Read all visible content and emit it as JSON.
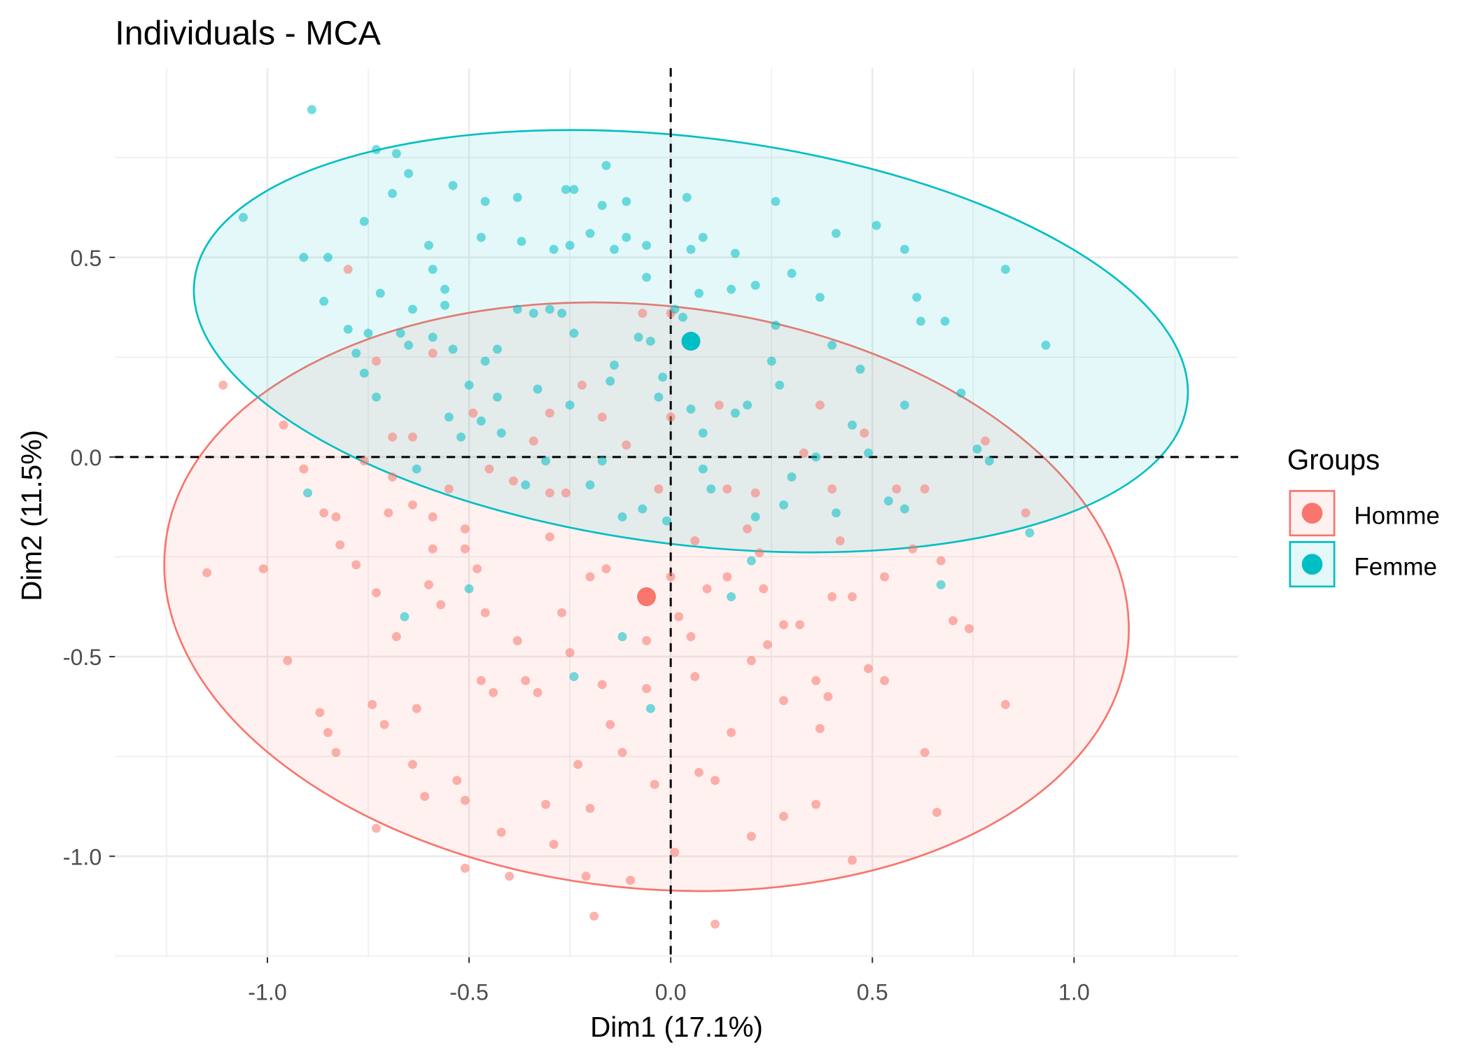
{
  "chart_data": {
    "type": "scatter",
    "title": "Individuals - MCA",
    "xlabel": "Dim1 (17.1%)",
    "ylabel": "Dim2 (11.5%)",
    "xlim": [
      -1.378,
      1.407
    ],
    "ylim": [
      -1.253,
      0.974
    ],
    "x_ticks": [
      -1.0,
      -0.5,
      0.0,
      0.5,
      1.0
    ],
    "x_tick_labels": [
      "-1.0",
      "-0.5",
      "0.0",
      "0.5",
      "1.0"
    ],
    "y_ticks": [
      -1.0,
      -0.5,
      0.0,
      0.5
    ],
    "y_tick_labels": [
      "-1.0",
      "-0.5",
      "0.0",
      "0.5"
    ],
    "grid": true,
    "reference_lines": {
      "x": 0,
      "y": 0,
      "style": "dashed"
    },
    "legend": {
      "title": "Groups",
      "position": "right"
    },
    "series": [
      {
        "name": "Homme",
        "color": "#F8766D",
        "centroid": [
          -0.06,
          -0.35
        ],
        "ellipse": {
          "center": [
            -0.06,
            -0.35
          ],
          "semi_major": 1.2,
          "semi_minor": 0.73,
          "angle_deg": -6
        },
        "points": [
          [
            -1.11,
            0.18
          ],
          [
            -1.15,
            -0.29
          ],
          [
            -1.01,
            -0.28
          ],
          [
            -0.95,
            -0.51
          ],
          [
            -0.91,
            -0.03
          ],
          [
            -0.87,
            -0.64
          ],
          [
            -0.85,
            -0.69
          ],
          [
            -0.83,
            -0.74
          ],
          [
            -0.82,
            -0.22
          ],
          [
            -0.78,
            -0.27
          ],
          [
            -0.73,
            -0.34
          ],
          [
            -0.7,
            -0.14
          ],
          [
            -0.68,
            -0.45
          ],
          [
            -0.64,
            -0.12
          ],
          [
            -0.59,
            -0.15
          ],
          [
            -0.59,
            -0.23
          ],
          [
            -0.6,
            -0.32
          ],
          [
            -0.57,
            -0.37
          ],
          [
            -0.51,
            -0.18
          ],
          [
            -0.51,
            -0.23
          ],
          [
            -0.48,
            -0.28
          ],
          [
            -0.46,
            -0.39
          ],
          [
            -0.47,
            -0.56
          ],
          [
            -0.44,
            -0.59
          ],
          [
            -0.38,
            -0.46
          ],
          [
            -0.36,
            -0.56
          ],
          [
            -0.33,
            -0.59
          ],
          [
            -0.3,
            -0.2
          ],
          [
            -0.27,
            -0.39
          ],
          [
            -0.25,
            -0.49
          ],
          [
            -0.2,
            -0.3
          ],
          [
            -0.17,
            -0.57
          ],
          [
            -0.15,
            -0.67
          ],
          [
            -0.23,
            -0.77
          ],
          [
            -0.2,
            -0.88
          ],
          [
            -0.42,
            -0.94
          ],
          [
            -0.51,
            -0.86
          ],
          [
            -0.64,
            -0.77
          ],
          [
            -0.63,
            -0.63
          ],
          [
            -0.29,
            -0.97
          ],
          [
            -0.21,
            -1.05
          ],
          [
            -0.19,
            -1.15
          ],
          [
            -0.1,
            -1.06
          ],
          [
            0.01,
            -0.99
          ],
          [
            0.11,
            -1.17
          ],
          [
            0.2,
            -0.95
          ],
          [
            0.28,
            -0.9
          ],
          [
            0.45,
            -1.01
          ],
          [
            0.63,
            -0.74
          ],
          [
            0.83,
            -0.62
          ],
          [
            0.7,
            -0.41
          ],
          [
            0.67,
            -0.26
          ],
          [
            0.53,
            -0.3
          ],
          [
            0.49,
            -0.53
          ],
          [
            0.53,
            -0.56
          ],
          [
            0.45,
            -0.35
          ],
          [
            0.4,
            -0.35
          ],
          [
            0.36,
            -0.56
          ],
          [
            0.32,
            -0.42
          ],
          [
            0.28,
            -0.42
          ],
          [
            0.24,
            -0.47
          ],
          [
            0.23,
            -0.33
          ],
          [
            0.2,
            -0.51
          ],
          [
            0.15,
            -0.69
          ],
          [
            0.11,
            -0.81
          ],
          [
            0.07,
            -0.79
          ],
          [
            0.09,
            -0.33
          ],
          [
            0.14,
            -0.3
          ],
          [
            0.06,
            -0.55
          ],
          [
            0.05,
            -0.45
          ],
          [
            0.02,
            -0.4
          ],
          [
            0.0,
            -0.3
          ],
          [
            -0.06,
            -0.58
          ],
          [
            -0.06,
            -0.46
          ],
          [
            -0.16,
            -0.28
          ],
          [
            -0.04,
            -0.82
          ],
          [
            -0.12,
            -0.74
          ],
          [
            -0.31,
            -0.87
          ],
          [
            -0.51,
            -1.03
          ],
          [
            -0.4,
            -1.05
          ],
          [
            -0.73,
            -0.93
          ],
          [
            -0.74,
            -0.62
          ],
          [
            -0.71,
            -0.67
          ],
          [
            -0.61,
            -0.85
          ],
          [
            -0.53,
            -0.81
          ],
          [
            0.36,
            -0.87
          ],
          [
            0.28,
            -0.61
          ],
          [
            0.37,
            -0.68
          ],
          [
            0.39,
            -0.6
          ],
          [
            0.66,
            -0.89
          ],
          [
            0.74,
            -0.43
          ],
          [
            0.6,
            -0.23
          ],
          [
            0.63,
            -0.08
          ],
          [
            0.78,
            0.04
          ],
          [
            0.88,
            -0.14
          ],
          [
            0.4,
            -0.08
          ],
          [
            0.42,
            -0.21
          ],
          [
            0.21,
            -0.09
          ],
          [
            0.19,
            -0.18
          ],
          [
            0.22,
            -0.24
          ],
          [
            0.14,
            -0.08
          ],
          [
            0.06,
            -0.21
          ],
          [
            -0.03,
            -0.08
          ],
          [
            0.0,
            0.1
          ],
          [
            -0.11,
            0.03
          ],
          [
            -0.17,
            0.1
          ],
          [
            -0.22,
            0.18
          ],
          [
            -0.3,
            0.11
          ],
          [
            -0.34,
            0.04
          ],
          [
            -0.26,
            -0.09
          ],
          [
            -0.3,
            -0.09
          ],
          [
            -0.39,
            -0.06
          ],
          [
            -0.45,
            -0.03
          ],
          [
            -0.49,
            0.11
          ],
          [
            -0.55,
            -0.08
          ],
          [
            -0.59,
            0.26
          ],
          [
            -0.64,
            0.05
          ],
          [
            -0.69,
            -0.05
          ],
          [
            -0.76,
            -0.01
          ],
          [
            -0.73,
            0.24
          ],
          [
            -0.8,
            0.47
          ],
          [
            -0.96,
            0.08
          ],
          [
            -0.69,
            0.05
          ],
          [
            -0.83,
            -0.15
          ],
          [
            -0.86,
            -0.14
          ],
          [
            -0.07,
            0.36
          ],
          [
            0.0,
            0.36
          ],
          [
            0.12,
            0.13
          ],
          [
            0.37,
            0.13
          ],
          [
            0.33,
            0.01
          ],
          [
            0.48,
            0.06
          ],
          [
            0.56,
            -0.08
          ]
        ]
      },
      {
        "name": "Femme",
        "color": "#00BFC4",
        "centroid": [
          0.05,
          0.29
        ],
        "ellipse": {
          "center": [
            0.05,
            0.29
          ],
          "semi_major": 1.24,
          "semi_minor": 0.51,
          "angle_deg": -7
        },
        "points": [
          [
            -0.89,
            0.87
          ],
          [
            -1.06,
            0.6
          ],
          [
            -0.91,
            0.5
          ],
          [
            -0.86,
            0.39
          ],
          [
            -0.69,
            0.66
          ],
          [
            -0.65,
            0.71
          ],
          [
            -0.54,
            0.68
          ],
          [
            -0.46,
            0.64
          ],
          [
            -0.38,
            0.65
          ],
          [
            -0.26,
            0.67
          ],
          [
            -0.24,
            0.67
          ],
          [
            -0.17,
            0.63
          ],
          [
            -0.16,
            0.73
          ],
          [
            -0.11,
            0.64
          ],
          [
            -0.47,
            0.55
          ],
          [
            -0.37,
            0.54
          ],
          [
            -0.29,
            0.52
          ],
          [
            -0.25,
            0.53
          ],
          [
            -0.2,
            0.56
          ],
          [
            -0.14,
            0.52
          ],
          [
            -0.11,
            0.55
          ],
          [
            -0.06,
            0.53
          ],
          [
            -0.6,
            0.53
          ],
          [
            -0.59,
            0.47
          ],
          [
            -0.56,
            0.42
          ],
          [
            -0.56,
            0.38
          ],
          [
            -0.72,
            0.41
          ],
          [
            -0.64,
            0.37
          ],
          [
            -0.78,
            0.26
          ],
          [
            -0.76,
            0.21
          ],
          [
            -0.73,
            0.15
          ],
          [
            -0.65,
            0.28
          ],
          [
            -0.54,
            0.27
          ],
          [
            -0.46,
            0.24
          ],
          [
            -0.43,
            0.27
          ],
          [
            -0.38,
            0.37
          ],
          [
            -0.34,
            0.36
          ],
          [
            -0.3,
            0.37
          ],
          [
            -0.27,
            0.36
          ],
          [
            -0.24,
            0.31
          ],
          [
            -0.14,
            0.23
          ],
          [
            -0.15,
            0.19
          ],
          [
            -0.25,
            0.13
          ],
          [
            -0.33,
            0.17
          ],
          [
            -0.43,
            0.15
          ],
          [
            -0.55,
            0.1
          ],
          [
            -0.52,
            0.05
          ],
          [
            -0.42,
            0.06
          ],
          [
            -0.63,
            -0.03
          ],
          [
            -0.36,
            -0.07
          ],
          [
            -0.2,
            -0.07
          ],
          [
            -0.12,
            -0.15
          ],
          [
            -0.01,
            -0.16
          ],
          [
            0.1,
            -0.08
          ],
          [
            0.08,
            0.06
          ],
          [
            0.05,
            0.12
          ],
          [
            0.16,
            0.11
          ],
          [
            0.19,
            0.13
          ],
          [
            0.27,
            0.18
          ],
          [
            0.4,
            0.28
          ],
          [
            0.47,
            0.22
          ],
          [
            0.45,
            0.08
          ],
          [
            0.58,
            0.13
          ],
          [
            0.54,
            -0.11
          ],
          [
            0.76,
            0.02
          ],
          [
            0.93,
            0.28
          ],
          [
            0.83,
            0.47
          ],
          [
            0.72,
            0.16
          ],
          [
            0.68,
            0.34
          ],
          [
            0.62,
            0.34
          ],
          [
            0.58,
            0.52
          ],
          [
            0.37,
            0.4
          ],
          [
            0.3,
            0.46
          ],
          [
            0.21,
            0.43
          ],
          [
            0.15,
            0.42
          ],
          [
            0.16,
            0.51
          ],
          [
            0.05,
            0.52
          ],
          [
            0.08,
            0.55
          ],
          [
            0.07,
            0.41
          ],
          [
            0.03,
            0.35
          ],
          [
            0.01,
            0.37
          ],
          [
            -0.02,
            0.2
          ],
          [
            -0.03,
            0.15
          ],
          [
            -0.05,
            0.29
          ],
          [
            -0.08,
            0.3
          ],
          [
            -0.06,
            0.45
          ],
          [
            0.26,
            0.33
          ],
          [
            0.25,
            0.24
          ],
          [
            0.36,
            0.0
          ],
          [
            0.49,
            0.01
          ],
          [
            0.3,
            -0.05
          ],
          [
            0.2,
            -0.26
          ],
          [
            0.15,
            -0.35
          ],
          [
            -0.24,
            -0.55
          ],
          [
            -0.05,
            -0.63
          ],
          [
            -0.12,
            -0.45
          ],
          [
            -0.66,
            -0.4
          ],
          [
            -0.9,
            -0.09
          ],
          [
            -0.5,
            -0.33
          ],
          [
            0.89,
            -0.19
          ],
          [
            0.67,
            -0.32
          ],
          [
            0.79,
            -0.01
          ],
          [
            0.61,
            0.4
          ],
          [
            0.41,
            0.56
          ],
          [
            0.51,
            0.58
          ],
          [
            0.26,
            0.64
          ],
          [
            0.04,
            0.65
          ],
          [
            -0.73,
            0.77
          ],
          [
            -0.68,
            0.76
          ],
          [
            -0.76,
            0.59
          ],
          [
            -0.85,
            0.5
          ],
          [
            -0.8,
            0.32
          ],
          [
            -0.75,
            0.31
          ],
          [
            -0.67,
            0.31
          ],
          [
            -0.59,
            0.3
          ],
          [
            -0.5,
            0.18
          ],
          [
            -0.47,
            0.09
          ],
          [
            -0.31,
            -0.01
          ],
          [
            -0.17,
            -0.01
          ],
          [
            -0.07,
            -0.13
          ],
          [
            0.08,
            -0.03
          ],
          [
            0.21,
            -0.15
          ],
          [
            0.28,
            -0.12
          ],
          [
            0.41,
            -0.14
          ],
          [
            0.58,
            -0.13
          ]
        ]
      }
    ]
  }
}
